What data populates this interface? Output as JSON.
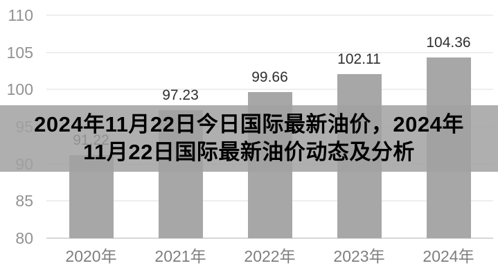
{
  "banner": {
    "lines": [
      "2024年11月22日今日国际最新油价，2024年",
      "11月22日国际最新油价动态及分析"
    ],
    "full_title": "2024年11月22日今日国际最新油价，2024年11月22日国际最新油价动态及分析",
    "bg_color": "rgba(161,161,161,0.85)",
    "text_color": "#000000"
  },
  "chart_data": {
    "type": "bar",
    "categories": [
      "2020年",
      "2021年",
      "2022年",
      "2023年",
      "2024年"
    ],
    "values": [
      91.22,
      97.23,
      99.66,
      102.11,
      104.36
    ],
    "value_labels": [
      "91.22",
      "97.23",
      "99.66",
      "102.11",
      "104.36"
    ],
    "title": "",
    "xlabel": "",
    "ylabel": "",
    "ylim": [
      80,
      110
    ],
    "yticks": [
      110,
      105,
      100,
      95,
      90,
      85,
      80
    ],
    "grid": true,
    "legend": "none",
    "colors": {
      "bar": "#a7a7a7",
      "value_label": "#2f2f2f",
      "y_tick_label": "#929292",
      "x_tick_label": "#7e7e7e",
      "gridline": "#eeeeee",
      "axis_line": "#d7d7d7",
      "background": "#ffffff"
    }
  }
}
